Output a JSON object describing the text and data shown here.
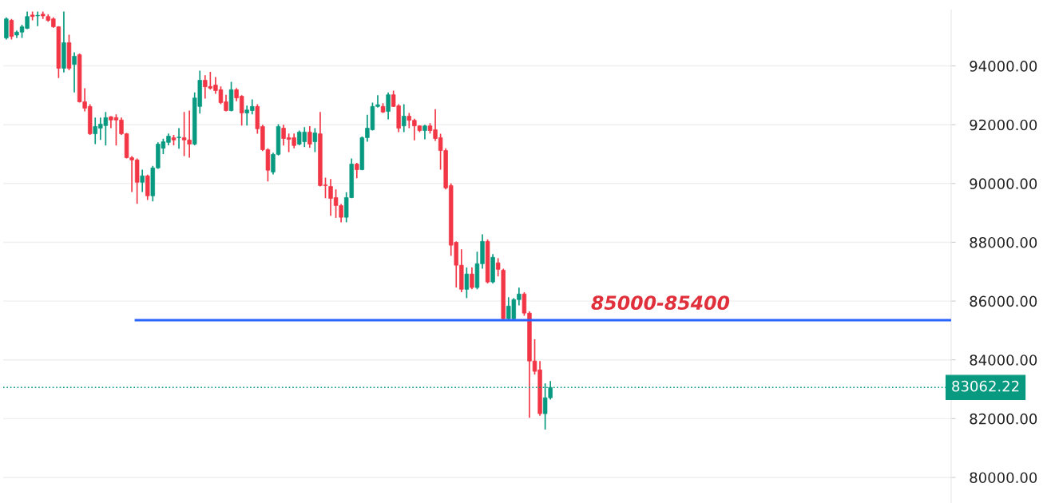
{
  "chart_data": {
    "type": "candlestick",
    "categories": [
      null,
      null,
      null,
      null,
      null,
      null,
      null,
      null,
      null,
      null,
      null,
      null,
      null,
      null,
      null,
      null,
      null,
      null,
      null,
      null,
      null,
      null,
      null,
      null,
      null,
      null,
      null,
      null,
      null,
      null,
      null,
      null,
      null,
      null,
      null,
      null,
      null,
      null,
      null,
      null,
      null,
      null,
      null,
      null,
      null,
      null,
      null,
      null,
      null,
      null,
      null,
      null,
      null,
      null,
      null,
      null,
      null,
      null,
      null,
      null,
      null,
      null,
      null,
      null,
      null,
      null,
      null,
      null,
      null,
      null,
      null,
      null,
      null,
      null,
      null,
      null,
      null,
      null,
      null,
      null,
      null,
      null,
      null,
      null,
      null,
      null,
      null,
      null,
      null,
      null,
      null,
      null,
      null,
      null,
      null,
      null,
      null,
      null,
      null,
      null,
      null,
      null,
      null,
      null,
      null,
      null,
      null,
      null,
      null,
      null,
      null,
      null,
      null,
      null,
      null,
      null,
      null,
      null,
      null,
      null,
      null,
      null,
      null,
      null,
      null,
      null,
      null,
      null,
      null,
      null,
      null,
      null,
      null,
      null,
      null,
      null,
      null,
      null,
      null,
      null,
      null,
      null,
      null,
      null,
      null,
      null,
      null,
      null,
      null,
      null,
      null,
      null,
      null,
      null,
      null,
      null,
      null,
      null,
      null,
      null,
      null,
      null,
      null,
      null,
      null,
      null,
      null,
      null,
      null,
      null,
      null,
      null,
      null,
      null,
      null,
      null,
      null,
      null,
      null,
      null,
      null
    ],
    "ohlc": [
      [
        94950,
        95650,
        94900,
        95600
      ],
      [
        95550,
        95600,
        94900,
        95000
      ],
      [
        95050,
        95200,
        94950,
        95150
      ],
      [
        95150,
        95400,
        94950,
        95330
      ],
      [
        95280,
        95850,
        95250,
        95680
      ],
      [
        95730,
        95850,
        95550,
        95680
      ],
      [
        95700,
        95850,
        95350,
        95720
      ],
      [
        95760,
        95850,
        95600,
        95700
      ],
      [
        95680,
        95750,
        95500,
        95550
      ],
      [
        95600,
        95650,
        95300,
        95330
      ],
      [
        95330,
        95350,
        93590,
        93920
      ],
      [
        93920,
        95850,
        93780,
        94790
      ],
      [
        94790,
        95060,
        93850,
        93920
      ],
      [
        94050,
        94460,
        93100,
        94330
      ],
      [
        94380,
        94420,
        92750,
        92780
      ],
      [
        92780,
        93240,
        92450,
        92560
      ],
      [
        92620,
        92700,
        91650,
        91690
      ],
      [
        91690,
        92240,
        91340,
        91940
      ],
      [
        91880,
        92240,
        91480,
        92020
      ],
      [
        91970,
        92430,
        91290,
        92240
      ],
      [
        92270,
        92290,
        91880,
        92160
      ],
      [
        92240,
        92350,
        91290,
        92160
      ],
      [
        92160,
        92240,
        91650,
        91690
      ],
      [
        91690,
        91720,
        90850,
        90880
      ],
      [
        90880,
        90930,
        89710,
        90800
      ],
      [
        90800,
        90850,
        89310,
        90040
      ],
      [
        90040,
        90470,
        89710,
        90260
      ],
      [
        90260,
        90300,
        89440,
        89580
      ],
      [
        89580,
        90600,
        89390,
        90530
      ],
      [
        90530,
        91400,
        90500,
        91340
      ],
      [
        91200,
        91520,
        91000,
        91420
      ],
      [
        91400,
        91700,
        91300,
        91610
      ],
      [
        91560,
        91650,
        91300,
        91480
      ],
      [
        91560,
        91880,
        91180,
        91580
      ],
      [
        91560,
        92430,
        90930,
        91480
      ],
      [
        91480,
        92480,
        90880,
        91340
      ],
      [
        91340,
        93100,
        91300,
        92910
      ],
      [
        92620,
        93840,
        92380,
        93510
      ],
      [
        93510,
        93680,
        92890,
        93290
      ],
      [
        93300,
        93800,
        93190,
        93240
      ],
      [
        93350,
        93620,
        93050,
        93160
      ],
      [
        93190,
        93300,
        92700,
        92750
      ],
      [
        92780,
        93020,
        92450,
        92480
      ],
      [
        92480,
        93460,
        92450,
        93190
      ],
      [
        93190,
        93250,
        92800,
        92910
      ],
      [
        92970,
        93000,
        91970,
        92400
      ],
      [
        92400,
        92650,
        91970,
        92500
      ],
      [
        92480,
        92860,
        92350,
        92620
      ],
      [
        92620,
        92700,
        91690,
        91860
      ],
      [
        91940,
        92000,
        91100,
        91150
      ],
      [
        91150,
        91200,
        90070,
        90450
      ],
      [
        90390,
        91050,
        90310,
        90990
      ],
      [
        90990,
        92020,
        90950,
        91940
      ],
      [
        91880,
        92000,
        91290,
        91530
      ],
      [
        91560,
        91700,
        91070,
        91500
      ],
      [
        91560,
        91700,
        91200,
        91290
      ],
      [
        91340,
        91800,
        91300,
        91750
      ],
      [
        91420,
        91920,
        91240,
        91750
      ],
      [
        91750,
        91950,
        91220,
        91340
      ],
      [
        91420,
        91880,
        91070,
        91720
      ],
      [
        91690,
        92430,
        89900,
        89930
      ],
      [
        89950,
        90200,
        89500,
        89930
      ],
      [
        89900,
        90150,
        88900,
        89490
      ],
      [
        89520,
        89800,
        88830,
        89250
      ],
      [
        89250,
        89300,
        88680,
        88850
      ],
      [
        88850,
        89700,
        88680,
        89520
      ],
      [
        89520,
        90850,
        89500,
        90660
      ],
      [
        90660,
        90700,
        90180,
        90470
      ],
      [
        90470,
        91600,
        90450,
        91560
      ],
      [
        91560,
        92340,
        91420,
        91880
      ],
      [
        91830,
        92750,
        91800,
        92620
      ],
      [
        92620,
        93000,
        92580,
        92680
      ],
      [
        92620,
        92730,
        92400,
        92430
      ],
      [
        92450,
        93100,
        92180,
        93020
      ],
      [
        93020,
        93160,
        92600,
        92620
      ],
      [
        92640,
        92700,
        91750,
        91880
      ],
      [
        91960,
        92700,
        91750,
        92290
      ],
      [
        92290,
        92400,
        91880,
        92150
      ],
      [
        92150,
        92200,
        91470,
        91960
      ],
      [
        91960,
        91980,
        91750,
        91800
      ],
      [
        91800,
        92000,
        91500,
        91960
      ],
      [
        91960,
        92050,
        91700,
        91800
      ],
      [
        91830,
        92530,
        91450,
        91530
      ],
      [
        91560,
        91690,
        90470,
        91120
      ],
      [
        91120,
        91200,
        89800,
        89850
      ],
      [
        89930,
        90000,
        87540,
        87900
      ],
      [
        88000,
        88030,
        86460,
        87220
      ],
      [
        87220,
        87760,
        86300,
        86400
      ],
      [
        86400,
        87140,
        86100,
        86920
      ],
      [
        86920,
        87140,
        86400,
        86460
      ],
      [
        86460,
        87680,
        86400,
        87270
      ],
      [
        87270,
        88270,
        87100,
        88030
      ],
      [
        88030,
        88100,
        86600,
        86650
      ],
      [
        86650,
        87600,
        86600,
        87490
      ],
      [
        87300,
        87460,
        86840,
        87080
      ],
      [
        87050,
        87100,
        85350,
        85400
      ],
      [
        85400,
        86130,
        85350,
        85830
      ],
      [
        85400,
        86100,
        85350,
        86050
      ],
      [
        86050,
        86460,
        85850,
        86240
      ],
      [
        86240,
        86300,
        85500,
        85590
      ],
      [
        85590,
        85650,
        82030,
        83960
      ],
      [
        83960,
        84700,
        83500,
        83610
      ],
      [
        83660,
        83960,
        82100,
        82170
      ],
      [
        82170,
        83200,
        81630,
        82710
      ],
      [
        82710,
        83280,
        82650,
        83062.22
      ],
      null,
      null,
      null,
      null,
      null,
      null,
      null,
      null,
      null,
      null,
      null,
      null,
      null,
      null,
      null,
      null,
      null,
      null,
      null,
      null,
      null,
      null,
      null,
      null,
      null,
      null,
      null,
      null,
      null,
      null,
      null,
      null,
      null,
      null,
      null,
      null,
      null,
      null,
      null,
      null,
      null,
      null,
      null,
      null,
      null,
      null,
      null,
      null,
      null,
      null,
      null,
      null,
      null,
      null,
      null,
      null,
      null,
      null,
      null,
      null,
      null,
      null,
      null,
      null,
      null,
      null,
      null,
      null,
      null,
      null,
      null,
      null,
      null,
      null,
      null,
      null
    ],
    "colors": [
      "#089981",
      "#f23645",
      "#089981",
      "#089981",
      "#089981",
      "#f23645",
      "#089981",
      "#f23645",
      "#f23645",
      "#f23645",
      "#f23645",
      "#089981",
      "#f23645",
      "#089981",
      "#f23645",
      "#f23645",
      "#f23645",
      "#089981",
      "#089981",
      "#089981",
      "#f23645",
      "#f23645",
      "#f23645",
      "#f23645",
      "#f23645",
      "#f23645",
      "#089981",
      "#f23645",
      "#089981",
      "#089981",
      "#089981",
      "#089981",
      "#f23645",
      "#089981",
      "#f23645",
      "#f23645",
      "#089981",
      "#089981",
      "#f23645",
      "#f23645",
      "#f23645",
      "#f23645",
      "#f23645",
      "#089981",
      "#f23645",
      "#f23645",
      "#089981",
      "#089981",
      "#f23645",
      "#f23645",
      "#f23645",
      "#089981",
      "#089981",
      "#f23645",
      "#f23645",
      "#f23645",
      "#089981",
      "#089981",
      "#f23645",
      "#089981",
      "#f23645",
      "#f23645",
      "#f23645",
      "#f23645",
      "#f23645",
      "#089981",
      "#089981",
      "#f23645",
      "#089981",
      "#089981",
      "#089981",
      "#089981",
      "#f23645",
      "#089981",
      "#f23645",
      "#f23645",
      "#089981",
      "#f23645",
      "#f23645",
      "#f23645",
      "#089981",
      "#f23645",
      "#f23645",
      "#f23645",
      "#f23645",
      "#f23645",
      "#f23645",
      "#f23645",
      "#089981",
      "#f23645",
      "#089981",
      "#089981",
      "#f23645",
      "#089981",
      "#f23645",
      "#f23645",
      "#089981",
      "#089981",
      "#089981",
      "#f23645",
      "#f23645",
      "#f23645",
      "#f23645",
      "#089981",
      "#089981",
      null,
      null,
      null,
      null,
      null,
      null,
      null,
      null,
      null,
      null,
      null,
      null,
      null,
      null,
      null,
      null,
      null,
      null,
      null,
      null,
      null,
      null,
      null,
      null,
      null,
      null,
      null,
      null,
      null,
      null,
      null,
      null,
      null,
      null,
      null,
      null,
      null,
      null,
      null,
      null,
      null,
      null,
      null,
      null,
      null,
      null,
      null,
      null,
      null,
      null,
      null,
      null,
      null,
      null,
      null,
      null,
      null,
      null,
      null,
      null,
      null,
      null,
      null,
      null,
      null,
      null,
      null,
      null,
      null,
      null,
      null,
      null,
      null,
      null,
      null,
      null
    ],
    "annotations": [
      "85000-85400"
    ],
    "ylim": [
      79130,
      95900
    ],
    "yticks": [
      {
        "value": 80000,
        "label": "80000.00"
      },
      {
        "value": 82000,
        "label": "82000.00"
      },
      {
        "value": 84000,
        "label": "84000.00"
      },
      {
        "value": 86000,
        "label": "86000.00"
      },
      {
        "value": 88000,
        "label": "88000.00"
      },
      {
        "value": 90000,
        "label": "90000.00"
      },
      {
        "value": 92000,
        "label": "92000.00"
      },
      {
        "value": 94000,
        "label": "94000.00"
      }
    ],
    "ref_lines": [
      {
        "axis": "y",
        "value": 85350,
        "color": "#2962ff",
        "line_style": "solid"
      },
      {
        "axis": "y",
        "value": 83062.22,
        "label": "83062.22",
        "color": "#089981",
        "line_style": "dotted"
      }
    ],
    "grid": "y",
    "tick_labels": "y"
  }
}
